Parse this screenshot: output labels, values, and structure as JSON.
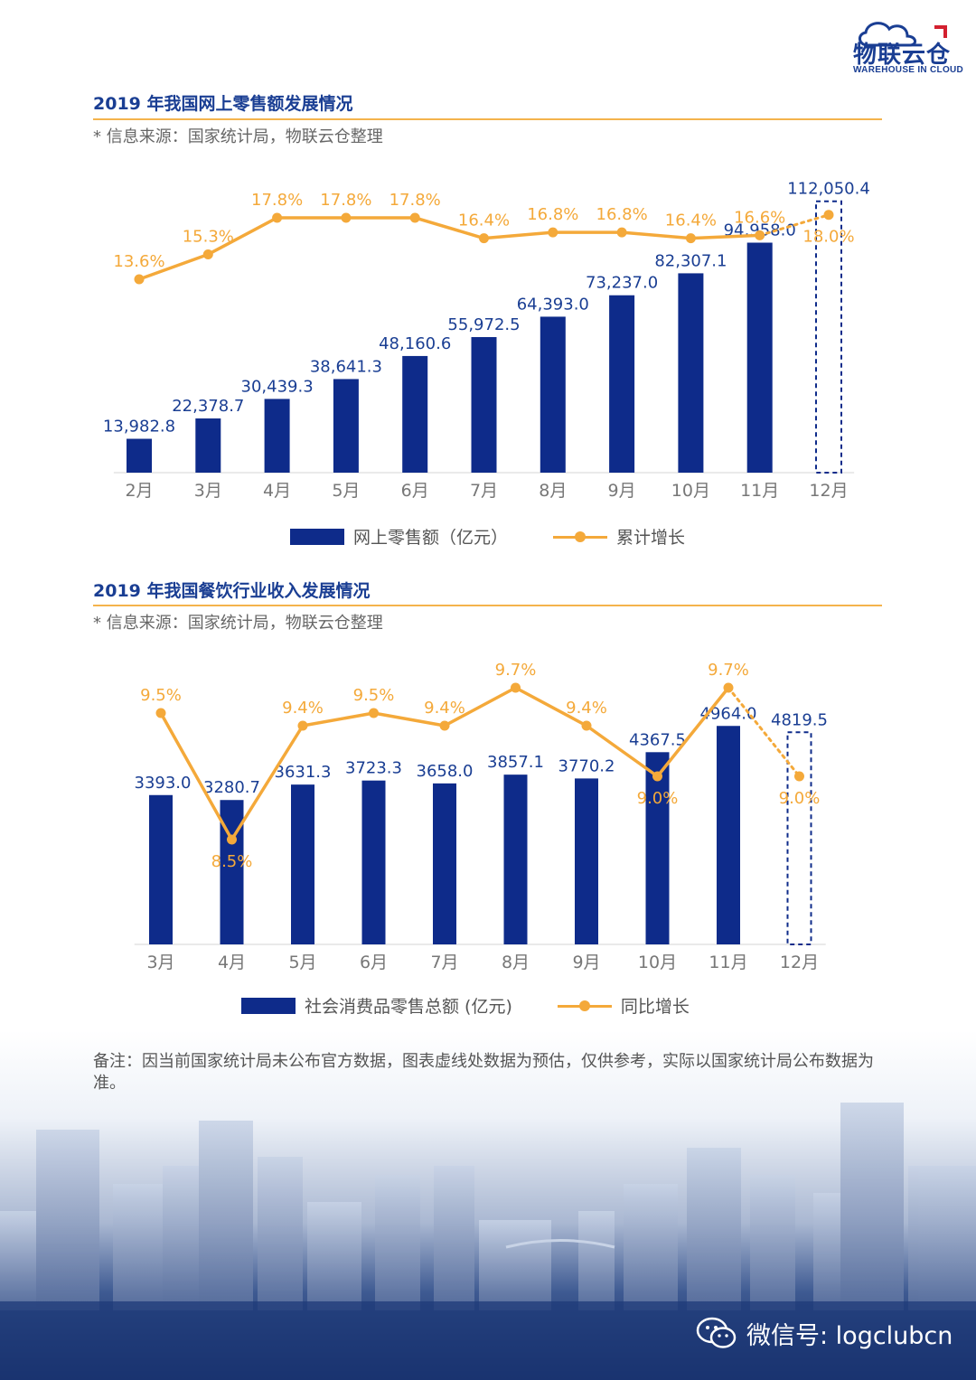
{
  "logo": {
    "cn": "物联云仓",
    "en": "WAREHOUSE IN CLOUD"
  },
  "section1": {
    "title": "2019 年我国网上零售额发展情况",
    "source": "* 信息来源：国家统计局，物联云仓整理",
    "legend": {
      "bar": "网上零售额（亿元）",
      "line": "累计增长"
    }
  },
  "section2": {
    "title": "2019 年我国餐饮行业收入发展情况",
    "source": "* 信息来源：国家统计局，物联云仓整理",
    "legend": {
      "bar": "社会消费品零售总额 (亿元)",
      "line": "同比增长"
    }
  },
  "note": "备注：因当前国家统计局未公布官方数据，图表虚线处数据为预估，仅供参考，实际以国家统计局公布数据为准。",
  "wechat": "微信号: logclubcn",
  "colors": {
    "bar": "#0e2b8a",
    "line": "#f4a93a",
    "bar_label": "#1a3e93",
    "rule": "#f4b34c"
  },
  "chart_data": [
    {
      "type": "bar",
      "categories": [
        "2月",
        "3月",
        "4月",
        "5月",
        "6月",
        "7月",
        "8月",
        "9月",
        "10月",
        "11月",
        "12月"
      ],
      "series": [
        {
          "name": "网上零售额（亿元）",
          "type": "bar",
          "values": [
            13982.8,
            22378.7,
            30439.3,
            38641.3,
            48160.6,
            55972.5,
            64393.0,
            73237.0,
            82307.1,
            94958.0,
            112050.4
          ],
          "labels": [
            "13,982.8",
            "22,378.7",
            "30,439.3",
            "38,641.3",
            "48,160.6",
            "55,972.5",
            "64,393.0",
            "73,237.0",
            "82,307.1",
            "94,958.0",
            "112,050.4"
          ],
          "estimated": [
            false,
            false,
            false,
            false,
            false,
            false,
            false,
            false,
            false,
            false,
            true
          ]
        },
        {
          "name": "累计增长",
          "type": "line",
          "values": [
            13.6,
            15.3,
            17.8,
            17.8,
            17.8,
            16.4,
            16.8,
            16.8,
            16.4,
            16.6,
            18.0
          ],
          "labels": [
            "13.6%",
            "15.3%",
            "17.8%",
            "17.8%",
            "17.8%",
            "16.4%",
            "16.8%",
            "16.8%",
            "16.4%",
            "16.6%",
            "18.0%"
          ],
          "estimated": [
            false,
            false,
            false,
            false,
            false,
            false,
            false,
            false,
            false,
            false,
            true
          ]
        }
      ]
    },
    {
      "type": "bar",
      "categories": [
        "3月",
        "4月",
        "5月",
        "6月",
        "7月",
        "8月",
        "9月",
        "10月",
        "11月",
        "12月"
      ],
      "series": [
        {
          "name": "社会消费品零售总额 (亿元)",
          "type": "bar",
          "values": [
            3393.0,
            3280.7,
            3631.3,
            3723.3,
            3658.0,
            3857.1,
            3770.2,
            4367.5,
            4964.0,
            4819.5
          ],
          "labels": [
            "3393.0",
            "3280.7",
            "3631.3",
            "3723.3",
            "3658.0",
            "3857.1",
            "3770.2",
            "4367.5",
            "4964.0",
            "4819.5"
          ],
          "estimated": [
            false,
            false,
            false,
            false,
            false,
            false,
            false,
            false,
            false,
            true
          ]
        },
        {
          "name": "同比增长",
          "type": "line",
          "values": [
            9.5,
            8.5,
            9.4,
            9.5,
            9.4,
            9.7,
            9.4,
            9.0,
            9.7,
            9.0
          ],
          "labels": [
            "9.5%",
            "8.5%",
            "9.4%",
            "9.5%",
            "9.4%",
            "9.7%",
            "9.4%",
            "9.0%",
            "9.7%",
            "9.0%"
          ],
          "estimated": [
            false,
            false,
            false,
            false,
            false,
            false,
            false,
            false,
            false,
            true
          ]
        }
      ]
    }
  ]
}
